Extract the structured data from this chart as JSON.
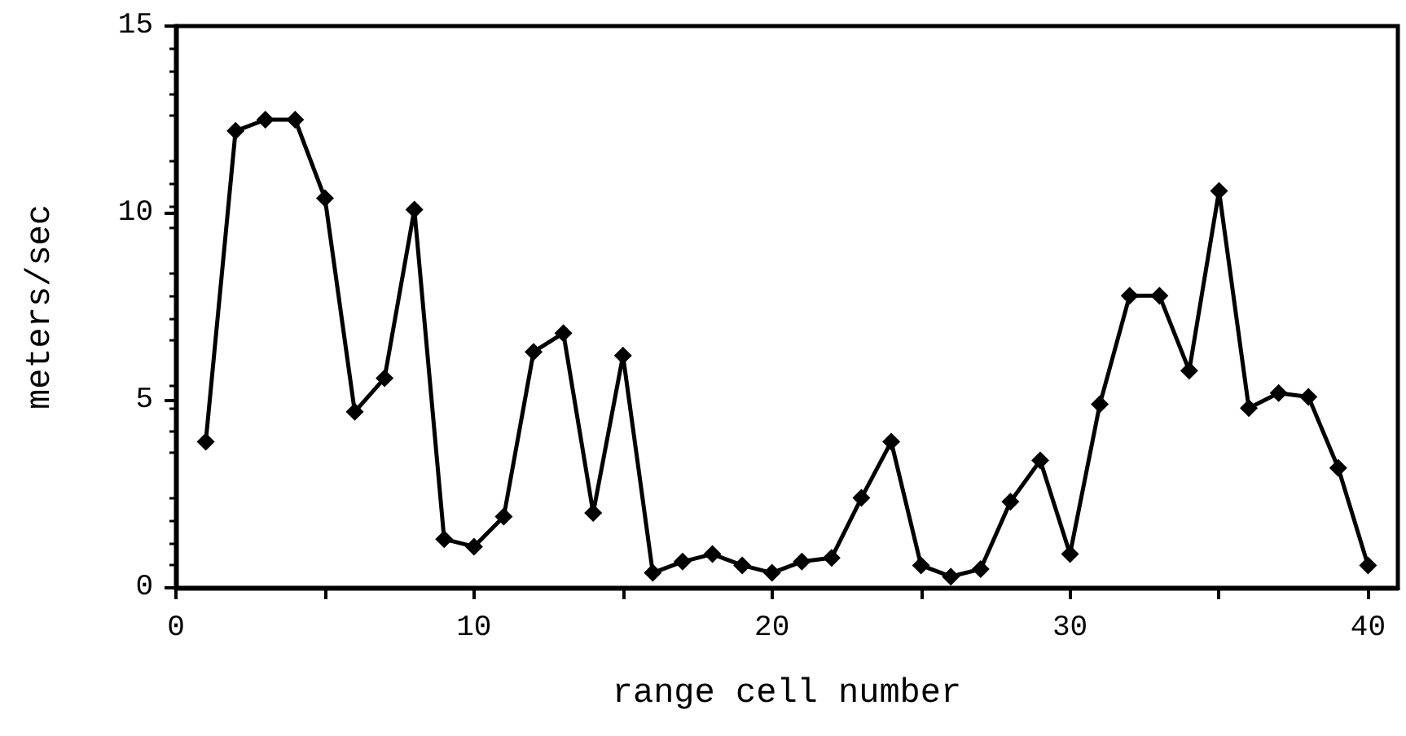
{
  "chart_data": {
    "type": "line",
    "xlabel": "range cell number",
    "ylabel": "meters/sec",
    "x": [
      1,
      2,
      3,
      4,
      5,
      6,
      7,
      8,
      9,
      10,
      11,
      12,
      13,
      14,
      15,
      16,
      17,
      18,
      19,
      20,
      21,
      22,
      23,
      24,
      25,
      26,
      27,
      28,
      29,
      30,
      31,
      32,
      33,
      34,
      35,
      36,
      37,
      38,
      39,
      40
    ],
    "series": [
      {
        "color": "#000000",
        "values": [
          3.9,
          12.2,
          12.5,
          12.5,
          10.4,
          4.7,
          5.6,
          10.1,
          1.3,
          1.1,
          1.9,
          6.3,
          6.8,
          2.0,
          6.2,
          0.4,
          0.7,
          0.9,
          0.6,
          0.4,
          0.7,
          0.8,
          2.4,
          3.9,
          0.6,
          0.3,
          0.5,
          2.3,
          3.4,
          0.9,
          4.9,
          7.8,
          7.8,
          5.8,
          10.6,
          4.8,
          5.2,
          5.1,
          3.2,
          0.6
        ]
      }
    ],
    "xlim": [
      0,
      41
    ],
    "xticks": [
      0,
      {
        "value": 5,
        "label": null
      },
      10,
      {
        "value": 15,
        "label": null
      },
      20,
      {
        "value": 25,
        "label": null
      },
      30,
      {
        "value": 35,
        "label": null
      },
      40
    ],
    "ylim": [
      0,
      15
    ],
    "yticks": [
      0,
      5,
      10,
      15
    ],
    "marker": "diamond",
    "line_style": "solid"
  }
}
